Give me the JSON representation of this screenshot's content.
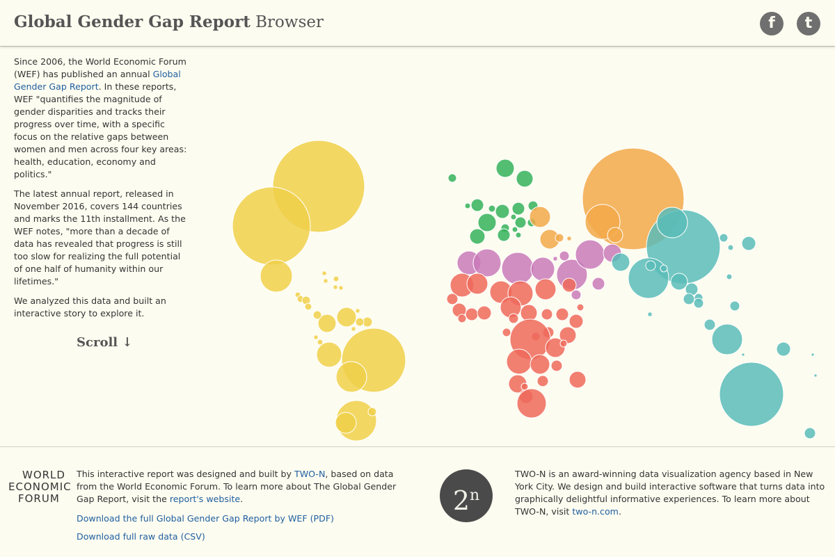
{
  "header": {
    "title_bold": "Global Gender Gap Report",
    "title_light": "Browser",
    "facebook_icon": "f",
    "twitter_icon": "t"
  },
  "intro": {
    "p1_before": "Since 2006, the World Economic Forum (WEF) has published an annual ",
    "p1_link": "Global Gender Gap Report",
    "p1_after": ". In these reports, WEF \"quantifies the magnitude of gender disparities and tracks their progress over time, with a specific focus on the relative gaps between women and men across four key areas: health, education, economy and politics.\"",
    "p2": "The latest annual report, released in November 2016, covers 144 countries and marks the 11th installment. As the WEF notes, \"more than a decade of data has revealed that progress is still too slow for realizing the full potential of one half of humanity within our lifetimes.\"",
    "p3": "We analyzed this data and built an interactive story to explore it.",
    "scroll_label": "Scroll ↓"
  },
  "colors": {
    "americas": "#f0d04a",
    "europe": "#35b25a",
    "mena": "#c97ab8",
    "africa": "#ee6a5a",
    "south_asia": "#f2a94a",
    "east_asia_pacific": "#5bbcb8"
  },
  "map_bubbles": {
    "americas": [
      [
        458,
        268,
        66
      ],
      [
        390,
        325,
        56
      ],
      [
        397,
        397,
        23
      ],
      [
        537,
        518,
        46
      ],
      [
        505,
        542,
        22
      ],
      [
        473,
        510,
        18
      ],
      [
        470,
        465,
        13
      ],
      [
        498,
        456,
        14
      ],
      [
        512,
        605,
        29
      ],
      [
        497,
        608,
        15
      ],
      [
        535,
        592,
        6
      ],
      [
        428,
        424,
        4
      ],
      [
        432,
        430,
        5
      ],
      [
        440,
        432,
        6
      ],
      [
        443,
        441,
        5
      ],
      [
        456,
        453,
        6
      ],
      [
        466,
        393,
        3
      ],
      [
        468,
        404,
        3
      ],
      [
        482,
        413,
        3
      ],
      [
        490,
        414,
        3
      ],
      [
        483,
        401,
        4
      ],
      [
        528,
        463,
        7
      ],
      [
        517,
        463,
        6
      ],
      [
        508,
        473,
        3
      ],
      [
        514,
        447,
        3
      ],
      [
        460,
        492,
        4
      ],
      [
        454,
        485,
        3
      ]
    ],
    "europe": [
      [
        726,
        242,
        13
      ],
      [
        754,
        257,
        12
      ],
      [
        650,
        256,
        6
      ],
      [
        686,
        295,
        9
      ],
      [
        672,
        296,
        4
      ],
      [
        707,
        300,
        5
      ],
      [
        722,
        304,
        10
      ],
      [
        745,
        300,
        9
      ],
      [
        766,
        296,
        7
      ],
      [
        700,
        320,
        13
      ],
      [
        726,
        328,
        6
      ],
      [
        748,
        320,
        8
      ],
      [
        738,
        312,
        4
      ],
      [
        686,
        340,
        11
      ],
      [
        724,
        338,
        9
      ],
      [
        764,
        320,
        6
      ],
      [
        740,
        330,
        4
      ],
      [
        745,
        338,
        4
      ]
    ],
    "south_asia": [
      [
        910,
        286,
        73
      ],
      [
        866,
        319,
        25
      ],
      [
        884,
        338,
        11
      ],
      [
        776,
        312,
        15
      ],
      [
        790,
        344,
        14
      ],
      [
        804,
        342,
        6
      ],
      [
        818,
        343,
        3
      ]
    ],
    "mena": [
      [
        674,
        378,
        17
      ],
      [
        700,
        378,
        20
      ],
      [
        744,
        386,
        23
      ],
      [
        780,
        387,
        17
      ],
      [
        822,
        395,
        22
      ],
      [
        848,
        366,
        21
      ],
      [
        880,
        364,
        13
      ],
      [
        860,
        408,
        9
      ],
      [
        811,
        368,
        7
      ],
      [
        828,
        424,
        7
      ],
      [
        798,
        372,
        3
      ]
    ],
    "africa": [
      [
        664,
        410,
        17
      ],
      [
        686,
        408,
        15
      ],
      [
        720,
        420,
        16
      ],
      [
        748,
        422,
        18
      ],
      [
        784,
        416,
        15
      ],
      [
        818,
        410,
        10
      ],
      [
        650,
        430,
        8
      ],
      [
        660,
        446,
        10
      ],
      [
        678,
        452,
        9
      ],
      [
        696,
        450,
        10
      ],
      [
        734,
        442,
        15
      ],
      [
        760,
        450,
        12
      ],
      [
        786,
        452,
        8
      ],
      [
        808,
        452,
        9
      ],
      [
        828,
        462,
        10
      ],
      [
        816,
        482,
        12
      ],
      [
        788,
        478,
        8
      ],
      [
        770,
        484,
        6
      ],
      [
        762,
        488,
        29
      ],
      [
        798,
        500,
        14
      ],
      [
        746,
        520,
        18
      ],
      [
        776,
        524,
        14
      ],
      [
        800,
        526,
        8
      ],
      [
        744,
        552,
        13
      ],
      [
        756,
        570,
        10
      ],
      [
        764,
        580,
        21
      ],
      [
        780,
        548,
        8
      ],
      [
        830,
        546,
        12
      ],
      [
        728,
        478,
        6
      ],
      [
        738,
        458,
        7
      ],
      [
        664,
        458,
        6
      ],
      [
        834,
        442,
        5
      ],
      [
        810,
        494,
        5
      ],
      [
        754,
        556,
        5
      ]
    ],
    "east_asia_pacific": [
      [
        982,
        355,
        53
      ],
      [
        932,
        400,
        29
      ],
      [
        966,
        320,
        22
      ],
      [
        892,
        377,
        13
      ],
      [
        935,
        382,
        7
      ],
      [
        954,
        386,
        5
      ],
      [
        976,
        405,
        12
      ],
      [
        994,
        416,
        9
      ],
      [
        990,
        430,
        8
      ],
      [
        1004,
        428,
        6
      ],
      [
        1004,
        436,
        7
      ],
      [
        1040,
        342,
        6
      ],
      [
        1050,
        356,
        4
      ],
      [
        1076,
        350,
        10
      ],
      [
        1048,
        398,
        4
      ],
      [
        1056,
        440,
        7
      ],
      [
        934,
        452,
        3
      ],
      [
        1020,
        467,
        8
      ],
      [
        1045,
        488,
        22
      ],
      [
        1126,
        502,
        10
      ],
      [
        1080,
        567,
        46
      ],
      [
        1164,
        623,
        8
      ],
      [
        1168,
        510,
        2
      ],
      [
        1172,
        540,
        2
      ],
      [
        1068,
        510,
        2
      ]
    ]
  },
  "footer": {
    "wef_line1": "WORLD",
    "wef_line2": "ECONOMIC",
    "wef_line3": "FORUM",
    "left_before": "This interactive report was designed and built by ",
    "left_link1": "TWO-N",
    "left_middle": ", based on data from the World Economic Forum. To learn more about The Global Gender Gap Report, visit the ",
    "left_link2": "report's website",
    "left_after": ".",
    "download_pdf": "Download the full Global Gender Gap Report by WEF (PDF)",
    "download_csv": "Download full raw data (CSV)",
    "twon_logo_text": "2",
    "twon_logo_sup": "n",
    "right_text": "TWO-N is an award-winning data visualization agency based in New York City. We design and build interactive software that turns data into graphically delightful informative experiences. To learn more about TWO-N, visit ",
    "right_link": "two-n.com",
    "right_after": "."
  }
}
